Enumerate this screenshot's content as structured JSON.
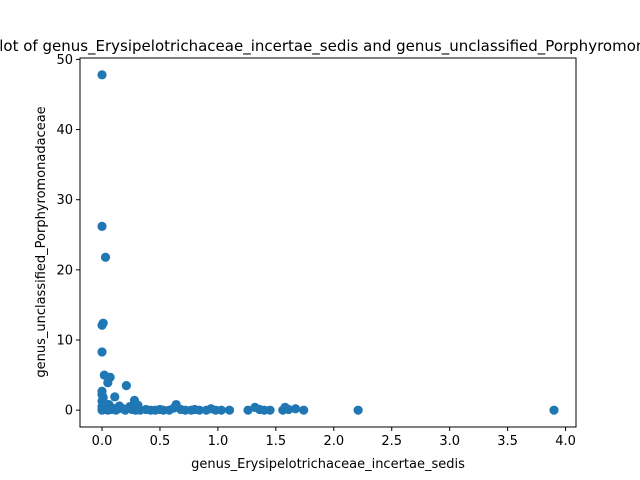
{
  "chart_data": {
    "type": "scatter",
    "title": "Scatter plot of genus_Erysipelotrichaceae_incertae_sedis and genus_unclassified_Porphyromonadaceae",
    "xlabel": "genus_Erysipelotrichaceae_incertae_sedis",
    "ylabel": "genus_unclassified_Porphyromonadaceae",
    "xlim": [
      -0.19,
      4.09
    ],
    "ylim": [
      -2.4,
      50.2
    ],
    "xticks": [
      0.0,
      0.5,
      1.0,
      1.5,
      2.0,
      2.5,
      3.0,
      3.5,
      4.0
    ],
    "xtick_labels": [
      "0.0",
      "0.5",
      "1.0",
      "1.5",
      "2.0",
      "2.5",
      "3.0",
      "3.5",
      "4.0"
    ],
    "yticks": [
      0,
      10,
      20,
      30,
      40,
      50
    ],
    "ytick_labels": [
      "0",
      "10",
      "20",
      "30",
      "40",
      "50"
    ],
    "grid": false,
    "marker_color": "#1f77b4",
    "points": [
      {
        "x": 0.0,
        "y": 47.8
      },
      {
        "x": 0.0,
        "y": 26.2
      },
      {
        "x": 0.03,
        "y": 21.8
      },
      {
        "x": 0.01,
        "y": 12.4
      },
      {
        "x": 0.0,
        "y": 12.1
      },
      {
        "x": 0.0,
        "y": 8.3
      },
      {
        "x": 0.02,
        "y": 5.0
      },
      {
        "x": 0.07,
        "y": 4.7
      },
      {
        "x": 0.05,
        "y": 3.9
      },
      {
        "x": 0.21,
        "y": 3.5
      },
      {
        "x": 0.0,
        "y": 2.7
      },
      {
        "x": 0.0,
        "y": 2.2
      },
      {
        "x": 0.01,
        "y": 1.8
      },
      {
        "x": 0.11,
        "y": 1.9
      },
      {
        "x": 0.28,
        "y": 1.4
      },
      {
        "x": 0.0,
        "y": 1.3
      },
      {
        "x": 0.02,
        "y": 1.0
      },
      {
        "x": 0.06,
        "y": 0.8
      },
      {
        "x": 0.15,
        "y": 0.6
      },
      {
        "x": 0.24,
        "y": 0.5
      },
      {
        "x": 0.31,
        "y": 0.7
      },
      {
        "x": 0.04,
        "y": 0.4
      },
      {
        "x": 0.09,
        "y": 0.3
      },
      {
        "x": 0.18,
        "y": 0.2
      },
      {
        "x": 0.0,
        "y": 0.5
      },
      {
        "x": 0.0,
        "y": 0.0
      },
      {
        "x": 0.02,
        "y": 0.1
      },
      {
        "x": 0.05,
        "y": 0.0
      },
      {
        "x": 0.08,
        "y": 0.1
      },
      {
        "x": 0.12,
        "y": 0.0
      },
      {
        "x": 0.14,
        "y": 0.2
      },
      {
        "x": 0.2,
        "y": 0.0
      },
      {
        "x": 0.26,
        "y": 0.1
      },
      {
        "x": 0.29,
        "y": 0.0
      },
      {
        "x": 0.33,
        "y": 0.0
      },
      {
        "x": 0.38,
        "y": 0.1
      },
      {
        "x": 0.42,
        "y": 0.0
      },
      {
        "x": 0.46,
        "y": 0.0
      },
      {
        "x": 0.5,
        "y": 0.1
      },
      {
        "x": 0.53,
        "y": 0.0
      },
      {
        "x": 0.58,
        "y": 0.0
      },
      {
        "x": 0.62,
        "y": 0.3
      },
      {
        "x": 0.64,
        "y": 0.8
      },
      {
        "x": 0.68,
        "y": 0.1
      },
      {
        "x": 0.72,
        "y": 0.0
      },
      {
        "x": 0.77,
        "y": 0.0
      },
      {
        "x": 0.8,
        "y": 0.1
      },
      {
        "x": 0.84,
        "y": 0.0
      },
      {
        "x": 0.9,
        "y": 0.0
      },
      {
        "x": 0.94,
        "y": 0.2
      },
      {
        "x": 0.98,
        "y": 0.0
      },
      {
        "x": 1.03,
        "y": 0.0
      },
      {
        "x": 1.1,
        "y": 0.0
      },
      {
        "x": 1.26,
        "y": 0.0
      },
      {
        "x": 1.32,
        "y": 0.4
      },
      {
        "x": 1.36,
        "y": 0.1
      },
      {
        "x": 1.4,
        "y": 0.0
      },
      {
        "x": 1.45,
        "y": 0.0
      },
      {
        "x": 1.56,
        "y": 0.0
      },
      {
        "x": 1.58,
        "y": 0.4
      },
      {
        "x": 1.61,
        "y": 0.1
      },
      {
        "x": 1.67,
        "y": 0.2
      },
      {
        "x": 1.74,
        "y": 0.0
      },
      {
        "x": 2.21,
        "y": 0.0
      },
      {
        "x": 3.9,
        "y": 0.0
      }
    ]
  }
}
